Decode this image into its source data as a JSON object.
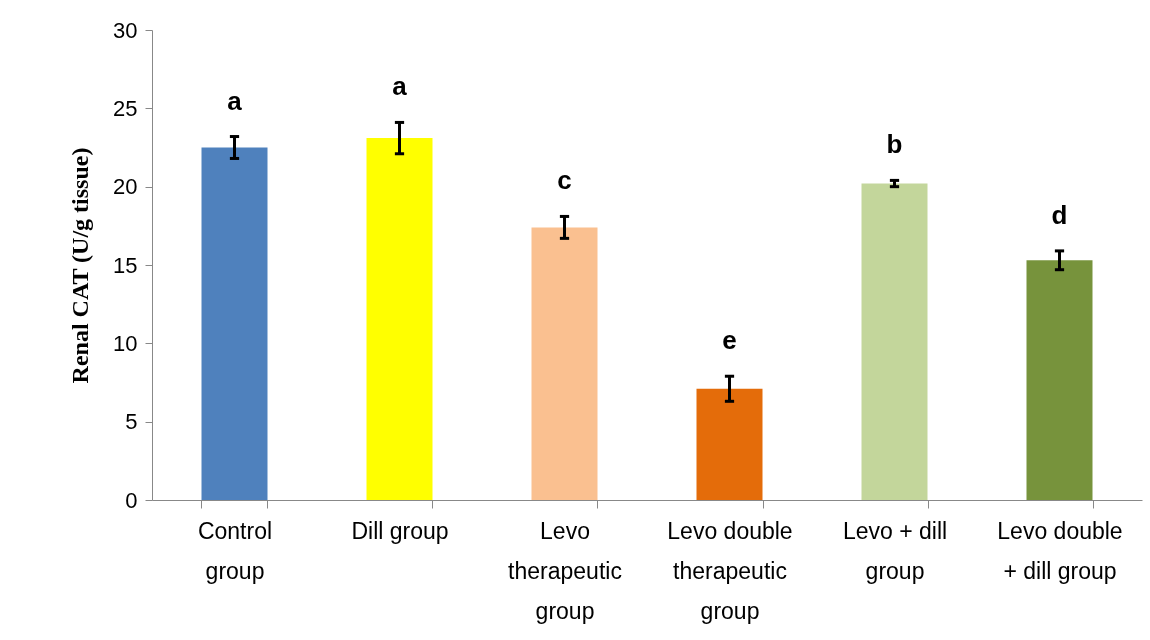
{
  "chart_data": {
    "type": "bar",
    "ylabel": "Renal CAT (U/g tissue)",
    "categories": [
      "Control group",
      "Dill group",
      "Levo therapeutic group",
      "Levo double therapeutic group",
      "Levo + dill group",
      "Levo double + dill group"
    ],
    "values": [
      22.5,
      23.1,
      17.4,
      7.1,
      20.2,
      15.3
    ],
    "errors": [
      0.7,
      1.0,
      0.7,
      0.8,
      0.2,
      0.6
    ],
    "colors": [
      "#4f81bd",
      "#ffff00",
      "#fac090",
      "#e46c0a",
      "#c3d69b",
      "#77933c"
    ],
    "ylim": [
      0,
      30
    ],
    "yticks": [
      0,
      5,
      10,
      15,
      20,
      25,
      30
    ],
    "grid": false,
    "annotations": [
      "a",
      "a",
      "c",
      "e",
      "b",
      "d"
    ]
  }
}
